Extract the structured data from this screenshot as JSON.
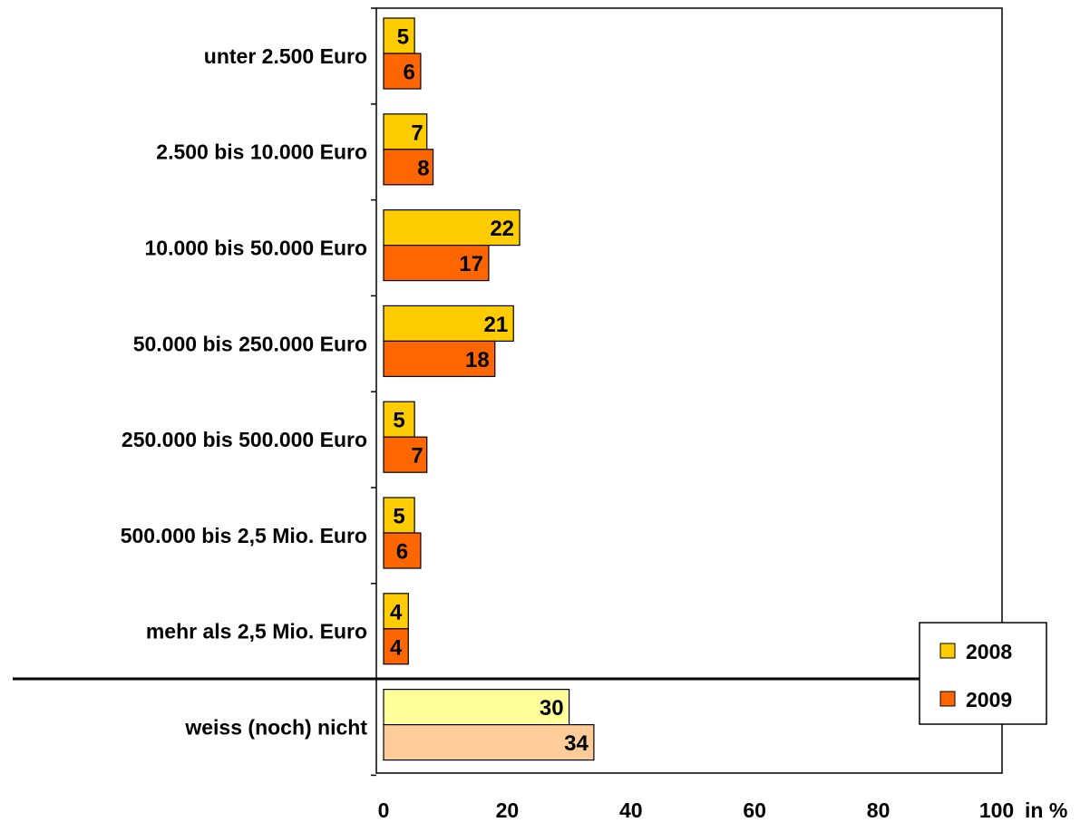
{
  "chart_data": {
    "type": "bar",
    "orientation": "horizontal",
    "categories": [
      "unter 2.500 Euro",
      "2.500 bis 10.000 Euro",
      "10.000 bis 50.000 Euro",
      "50.000 bis 250.000 Euro",
      "250.000 bis 500.000 Euro",
      "500.000 bis 2,5 Mio. Euro",
      "mehr als 2,5 Mio. Euro",
      "weiss (noch) nicht"
    ],
    "series": [
      {
        "name": "2008",
        "values": [
          5,
          7,
          22,
          21,
          5,
          5,
          4,
          30
        ]
      },
      {
        "name": "2009",
        "values": [
          6,
          8,
          17,
          18,
          7,
          6,
          4,
          34
        ]
      }
    ],
    "colors": {
      "2008": "#FFCC00",
      "2009": "#FF6600",
      "2008_separate": "#FFFF99",
      "2009_separate": "#FFCC99"
    },
    "x_ticks": [
      "0",
      "20",
      "40",
      "60",
      "80",
      "100"
    ],
    "x_unit_label": "in %",
    "xlim": [
      0,
      100
    ],
    "grid": false,
    "legend_position": "bottom-right",
    "separator_after_category": "mehr als 2,5 Mio. Euro"
  }
}
